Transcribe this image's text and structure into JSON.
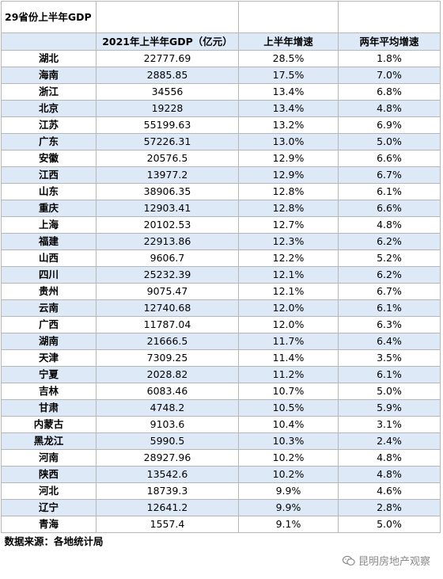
{
  "title": "29省份上半年GDP",
  "columns": [
    "",
    "2021年上半年GDP（亿元）",
    "上半年增速",
    "两年平均增速"
  ],
  "rows": [
    {
      "province": "湖北",
      "gdp": "22777.69",
      "growth": "28.5%",
      "avg2y": "1.8%"
    },
    {
      "province": "海南",
      "gdp": "2885.85",
      "growth": "17.5%",
      "avg2y": "7.0%"
    },
    {
      "province": "浙江",
      "gdp": "34556",
      "growth": "13.4%",
      "avg2y": "6.8%"
    },
    {
      "province": "北京",
      "gdp": "19228",
      "growth": "13.4%",
      "avg2y": "4.8%"
    },
    {
      "province": "江苏",
      "gdp": "55199.63",
      "growth": "13.2%",
      "avg2y": "6.9%"
    },
    {
      "province": "广东",
      "gdp": "57226.31",
      "growth": "13.0%",
      "avg2y": "5.0%"
    },
    {
      "province": "安徽",
      "gdp": "20576.5",
      "growth": "12.9%",
      "avg2y": "6.6%"
    },
    {
      "province": "江西",
      "gdp": "13977.2",
      "growth": "12.9%",
      "avg2y": "6.7%"
    },
    {
      "province": "山东",
      "gdp": "38906.35",
      "growth": "12.8%",
      "avg2y": "6.1%"
    },
    {
      "province": "重庆",
      "gdp": "12903.41",
      "growth": "12.8%",
      "avg2y": "6.6%"
    },
    {
      "province": "上海",
      "gdp": "20102.53",
      "growth": "12.7%",
      "avg2y": "4.8%"
    },
    {
      "province": "福建",
      "gdp": "22913.86",
      "growth": "12.3%",
      "avg2y": "6.2%"
    },
    {
      "province": "山西",
      "gdp": "9606.7",
      "growth": "12.2%",
      "avg2y": "5.2%"
    },
    {
      "province": "四川",
      "gdp": "25232.39",
      "growth": "12.1%",
      "avg2y": "6.2%"
    },
    {
      "province": "贵州",
      "gdp": "9075.47",
      "growth": "12.1%",
      "avg2y": "6.7%"
    },
    {
      "province": "云南",
      "gdp": "12740.68",
      "growth": "12.0%",
      "avg2y": "6.1%"
    },
    {
      "province": "广西",
      "gdp": "11787.04",
      "growth": "12.0%",
      "avg2y": "6.3%"
    },
    {
      "province": "湖南",
      "gdp": "21666.5",
      "growth": "11.7%",
      "avg2y": "6.4%"
    },
    {
      "province": "天津",
      "gdp": "7309.25",
      "growth": "11.4%",
      "avg2y": "3.5%"
    },
    {
      "province": "宁夏",
      "gdp": "2028.82",
      "growth": "11.2%",
      "avg2y": "6.1%"
    },
    {
      "province": "吉林",
      "gdp": "6083.46",
      "growth": "10.7%",
      "avg2y": "5.0%"
    },
    {
      "province": "甘肃",
      "gdp": "4748.2",
      "growth": "10.5%",
      "avg2y": "5.9%"
    },
    {
      "province": "内蒙古",
      "gdp": "9103.6",
      "growth": "10.4%",
      "avg2y": "3.1%"
    },
    {
      "province": "黑龙江",
      "gdp": "5990.5",
      "growth": "10.3%",
      "avg2y": "2.4%"
    },
    {
      "province": "河南",
      "gdp": "28927.96",
      "growth": "10.2%",
      "avg2y": "4.8%"
    },
    {
      "province": "陕西",
      "gdp": "13542.6",
      "growth": "10.2%",
      "avg2y": "4.8%"
    },
    {
      "province": "河北",
      "gdp": "18739.3",
      "growth": "9.9%",
      "avg2y": "4.6%"
    },
    {
      "province": "辽宁",
      "gdp": "12641.2",
      "growth": "9.9%",
      "avg2y": "2.8%"
    },
    {
      "province": "青海",
      "gdp": "1557.4",
      "growth": "9.1%",
      "avg2y": "5.0%"
    }
  ],
  "source": "数据来源：各地统计局",
  "watermark": {
    "icon": "wechat-icon",
    "text": "昆明房地产观察"
  },
  "colors": {
    "band": "#dde9f7",
    "border": "#b7b7b7"
  }
}
